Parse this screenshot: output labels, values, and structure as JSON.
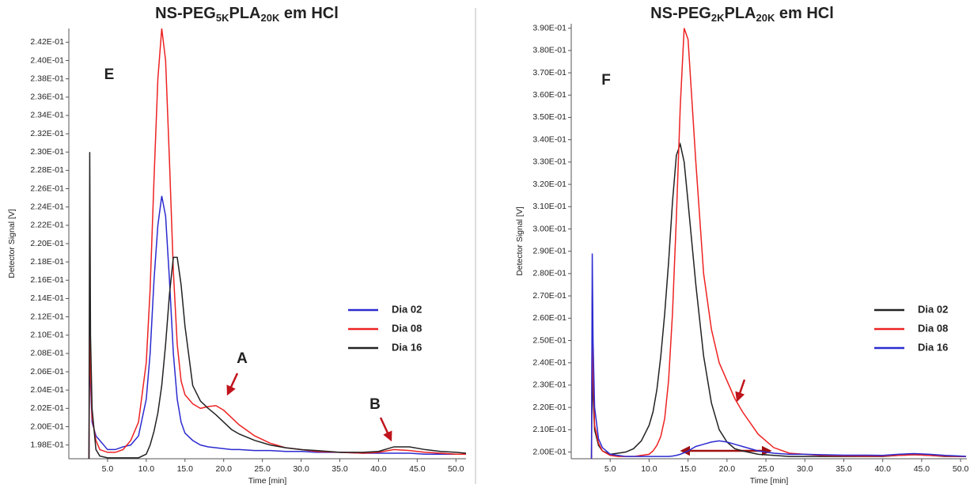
{
  "chart_data": [
    {
      "type": "line",
      "title": [
        "NS-PEG",
        "5K",
        "PLA",
        "20K",
        " em HCl"
      ],
      "x_label": "Time [min]",
      "y_label": "Detector Signal [V]",
      "annotations": [
        "E",
        "A",
        "B"
      ],
      "x": [
        2.6,
        2.7,
        2.8,
        3.0,
        3.5,
        4,
        5,
        6,
        7,
        8,
        9,
        10,
        10.5,
        11,
        11.5,
        12,
        12.5,
        13,
        13.5,
        14,
        14.5,
        15,
        16,
        17,
        18,
        19,
        20,
        21,
        22,
        24,
        26,
        28,
        30,
        32,
        35,
        38,
        40,
        42,
        44,
        46,
        48,
        50,
        51.3
      ],
      "series": [
        {
          "name": "Dia 02",
          "color": "#2b2bd0",
          "values": [
            0.1965,
            0.2093,
            0.205,
            0.2005,
            0.199,
            0.1985,
            0.1975,
            0.1975,
            0.1978,
            0.198,
            0.199,
            0.203,
            0.208,
            0.216,
            0.222,
            0.2252,
            0.223,
            0.216,
            0.208,
            0.203,
            0.2005,
            0.1993,
            0.1985,
            0.198,
            0.1978,
            0.1977,
            0.1976,
            0.1975,
            0.1975,
            0.1974,
            0.1974,
            0.1973,
            0.1973,
            0.1972,
            0.1972,
            0.1971,
            0.1971,
            0.1971,
            0.1971,
            0.197,
            0.197,
            0.197,
            0.197
          ]
        },
        {
          "name": "Dia 08",
          "color": "#ee2222",
          "values": [
            0.1965,
            0.212,
            0.206,
            0.201,
            0.1985,
            0.1975,
            0.1972,
            0.1972,
            0.1975,
            0.1985,
            0.2005,
            0.207,
            0.215,
            0.227,
            0.238,
            0.2435,
            0.24,
            0.229,
            0.217,
            0.209,
            0.205,
            0.2035,
            0.2025,
            0.202,
            0.2022,
            0.2023,
            0.2018,
            0.201,
            0.2002,
            0.199,
            0.1982,
            0.1977,
            0.1975,
            0.1973,
            0.1972,
            0.1971,
            0.1972,
            0.1975,
            0.1974,
            0.1972,
            0.1971,
            0.197,
            0.197
          ]
        },
        {
          "name": "Dia 16",
          "color": "#222222",
          "values": [
            0.1965,
            0.23,
            0.21,
            0.202,
            0.1975,
            0.1968,
            0.1966,
            0.1966,
            0.1966,
            0.1966,
            0.1966,
            0.197,
            0.198,
            0.1995,
            0.2015,
            0.2045,
            0.209,
            0.2145,
            0.2185,
            0.2185,
            0.2155,
            0.211,
            0.2045,
            0.2028,
            0.202,
            0.2013,
            0.2005,
            0.1997,
            0.1992,
            0.1985,
            0.198,
            0.1977,
            0.1975,
            0.1974,
            0.1972,
            0.1972,
            0.1973,
            0.1978,
            0.1978,
            0.1975,
            0.1973,
            0.1972,
            0.1971
          ]
        }
      ],
      "xlim": [
        0,
        51.3
      ],
      "xticks": [
        {
          "value": 5,
          "label": "5.0"
        },
        {
          "value": 10,
          "label": "10.0"
        },
        {
          "value": 15,
          "label": "15.0"
        },
        {
          "value": 20,
          "label": "20.0"
        },
        {
          "value": 25,
          "label": "25.0"
        },
        {
          "value": 30,
          "label": "30.0"
        },
        {
          "value": 35,
          "label": "35.0"
        },
        {
          "value": 40,
          "label": "40.0"
        },
        {
          "value": 45,
          "label": "45.0"
        },
        {
          "value": 50,
          "label": "50.0"
        }
      ],
      "ylim": [
        0.1965,
        0.2435
      ],
      "yticks": [
        {
          "value": 0.198,
          "label": "1.98E-01"
        },
        {
          "value": 0.2,
          "label": "2.00E-01"
        },
        {
          "value": 0.202,
          "label": "2.02E-01"
        },
        {
          "value": 0.204,
          "label": "2.04E-01"
        },
        {
          "value": 0.206,
          "label": "2.06E-01"
        },
        {
          "value": 0.208,
          "label": "2.08E-01"
        },
        {
          "value": 0.21,
          "label": "2.10E-01"
        },
        {
          "value": 0.212,
          "label": "2.12E-01"
        },
        {
          "value": 0.214,
          "label": "2.14E-01"
        },
        {
          "value": 0.216,
          "label": "2.16E-01"
        },
        {
          "value": 0.218,
          "label": "2.18E-01"
        },
        {
          "value": 0.22,
          "label": "2.20E-01"
        },
        {
          "value": 0.222,
          "label": "2.22E-01"
        },
        {
          "value": 0.224,
          "label": "2.24E-01"
        },
        {
          "value": 0.226,
          "label": "2.26E-01"
        },
        {
          "value": 0.228,
          "label": "2.28E-01"
        },
        {
          "value": 0.23,
          "label": "2.30E-01"
        },
        {
          "value": 0.232,
          "label": "2.32E-01"
        },
        {
          "value": 0.234,
          "label": "2.34E-01"
        },
        {
          "value": 0.236,
          "label": "2.36E-01"
        },
        {
          "value": 0.238,
          "label": "2.38E-01"
        },
        {
          "value": 0.24,
          "label": "2.40E-01"
        },
        {
          "value": 0.242,
          "label": "2.42E-01"
        }
      ]
    },
    {
      "type": "line",
      "title": [
        "NS-PEG",
        "2K",
        "PLA",
        "20K",
        " em HCl"
      ],
      "x_label": "Time [min]",
      "y_label": "Detector Signal [V]",
      "annotations": [
        "F"
      ],
      "x": [
        2.6,
        2.7,
        2.8,
        3.0,
        3.5,
        4,
        5,
        6,
        7,
        8,
        9,
        10,
        10.5,
        11,
        11.5,
        12,
        12.5,
        13,
        13.5,
        14,
        14.5,
        15,
        16,
        17,
        18,
        19,
        20,
        21,
        22,
        24,
        26,
        28,
        30,
        32,
        35,
        38,
        40,
        42,
        44,
        46,
        48,
        50,
        50.7
      ],
      "series": [
        {
          "name": "Dia 02",
          "color": "#222222",
          "values": [
            0.197,
            0.245,
            0.225,
            0.21,
            0.203,
            0.2005,
            0.199,
            0.1995,
            0.2,
            0.2015,
            0.205,
            0.212,
            0.218,
            0.228,
            0.243,
            0.262,
            0.285,
            0.312,
            0.333,
            0.338,
            0.33,
            0.312,
            0.275,
            0.243,
            0.222,
            0.21,
            0.2045,
            0.2015,
            0.2005,
            0.199,
            0.1985,
            0.198,
            0.198,
            0.198,
            0.198,
            0.198,
            0.198,
            0.1985,
            0.1988,
            0.1985,
            0.198,
            0.198,
            0.198
          ]
        },
        {
          "name": "Dia 08",
          "color": "#ee2222",
          "values": [
            0.197,
            0.27,
            0.235,
            0.212,
            0.204,
            0.2005,
            0.1985,
            0.198,
            0.198,
            0.198,
            0.1985,
            0.199,
            0.2005,
            0.203,
            0.207,
            0.215,
            0.232,
            0.262,
            0.305,
            0.355,
            0.39,
            0.385,
            0.33,
            0.28,
            0.255,
            0.24,
            0.232,
            0.224,
            0.218,
            0.208,
            0.202,
            0.1995,
            0.199,
            0.1985,
            0.1983,
            0.1982,
            0.1982,
            0.1985,
            0.1988,
            0.1985,
            0.1982,
            0.198,
            0.198
          ]
        },
        {
          "name": "Dia 16",
          "color": "#2b2bd0",
          "values": [
            0.197,
            0.289,
            0.25,
            0.22,
            0.206,
            0.202,
            0.199,
            0.1985,
            0.198,
            0.198,
            0.198,
            0.198,
            0.198,
            0.198,
            0.198,
            0.198,
            0.198,
            0.1982,
            0.1985,
            0.199,
            0.1997,
            0.2005,
            0.2025,
            0.2035,
            0.2045,
            0.205,
            0.2045,
            0.2035,
            0.2025,
            0.2005,
            0.1995,
            0.199,
            0.199,
            0.1988,
            0.1986,
            0.1986,
            0.1985,
            0.199,
            0.1993,
            0.199,
            0.1985,
            0.1982,
            0.198
          ]
        }
      ],
      "xlim": [
        0,
        50.8
      ],
      "xticks": [
        {
          "value": 5,
          "label": "5.0"
        },
        {
          "value": 10,
          "label": "10.0"
        },
        {
          "value": 15,
          "label": "15.0"
        },
        {
          "value": 20,
          "label": "20.0"
        },
        {
          "value": 25,
          "label": "25.0"
        },
        {
          "value": 30,
          "label": "30.0"
        },
        {
          "value": 35,
          "label": "35.0"
        },
        {
          "value": 40,
          "label": "40.0"
        },
        {
          "value": 45,
          "label": "45.0"
        },
        {
          "value": 50,
          "label": "50.0"
        }
      ],
      "ylim": [
        0.197,
        0.392
      ],
      "yticks": [
        {
          "value": 0.2,
          "label": "2.00E-01"
        },
        {
          "value": 0.21,
          "label": "2.10E-01"
        },
        {
          "value": 0.22,
          "label": "2.20E-01"
        },
        {
          "value": 0.23,
          "label": "2.30E-01"
        },
        {
          "value": 0.24,
          "label": "2.40E-01"
        },
        {
          "value": 0.25,
          "label": "2.50E-01"
        },
        {
          "value": 0.26,
          "label": "2.60E-01"
        },
        {
          "value": 0.27,
          "label": "2.70E-01"
        },
        {
          "value": 0.28,
          "label": "2.80E-01"
        },
        {
          "value": 0.29,
          "label": "2.90E-01"
        },
        {
          "value": 0.3,
          "label": "3.00E-01"
        },
        {
          "value": 0.31,
          "label": "3.10E-01"
        },
        {
          "value": 0.32,
          "label": "3.20E-01"
        },
        {
          "value": 0.33,
          "label": "3.30E-01"
        },
        {
          "value": 0.34,
          "label": "3.40E-01"
        },
        {
          "value": 0.35,
          "label": "3.50E-01"
        },
        {
          "value": 0.36,
          "label": "3.60E-01"
        },
        {
          "value": 0.37,
          "label": "3.70E-01"
        },
        {
          "value": 0.38,
          "label": "3.80E-01"
        },
        {
          "value": 0.39,
          "label": "3.90E-01"
        }
      ]
    }
  ]
}
